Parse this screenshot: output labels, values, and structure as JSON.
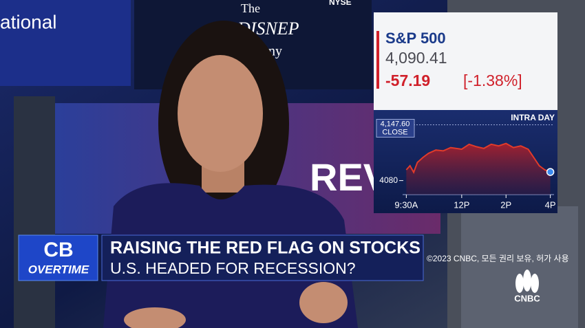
{
  "background_text": {
    "network": "ational",
    "sign": "The",
    "sign_brand": "DISNEP",
    "sign_rest": "ny",
    "exchange": "NYSE",
    "wall": "REV"
  },
  "ticker": {
    "name": "S&P 500",
    "price": "4,090.41",
    "change": "-57.19",
    "change_pct": "[-1.38%]"
  },
  "chart_data": {
    "type": "line",
    "label": "INTRA DAY",
    "reference": {
      "value": 4147.6,
      "label": "4,147.60",
      "text": "CLOSE"
    },
    "x": [
      0,
      10,
      20,
      30,
      45,
      60,
      80,
      100,
      120,
      150,
      170,
      190,
      210,
      230,
      250,
      270,
      290,
      310,
      330,
      345,
      360,
      375,
      390
    ],
    "series": [
      {
        "color": "#e23b2a",
        "values": [
          4093,
          4098,
          4090,
          4102,
          4108,
          4113,
          4117,
          4116,
          4120,
          4118,
          4124,
          4121,
          4119,
          4124,
          4122,
          4125,
          4120,
          4122,
          4118,
          4108,
          4098,
          4093,
          4090.41
        ]
      }
    ],
    "xlim": [
      -10,
      400
    ],
    "ylim": [
      4063,
      4153
    ],
    "xticks": [
      {
        "value": 0,
        "label": "9:30A"
      },
      {
        "value": 150,
        "label": "12P"
      },
      {
        "value": 270,
        "label": "2P"
      },
      {
        "value": 390,
        "label": "4P"
      }
    ],
    "yticks": [
      4080
    ]
  },
  "lower_third": {
    "logo_top": "CB",
    "logo_bottom": "OVERTIME",
    "headline": "RAISING THE RED FLAG ON STOCKS",
    "subhead": "U.S. HEADED FOR RECESSION?"
  },
  "copyright": "©2023 CNBC, 모든 권리 보유, 허가 사용",
  "network_logo": "CNBC"
}
